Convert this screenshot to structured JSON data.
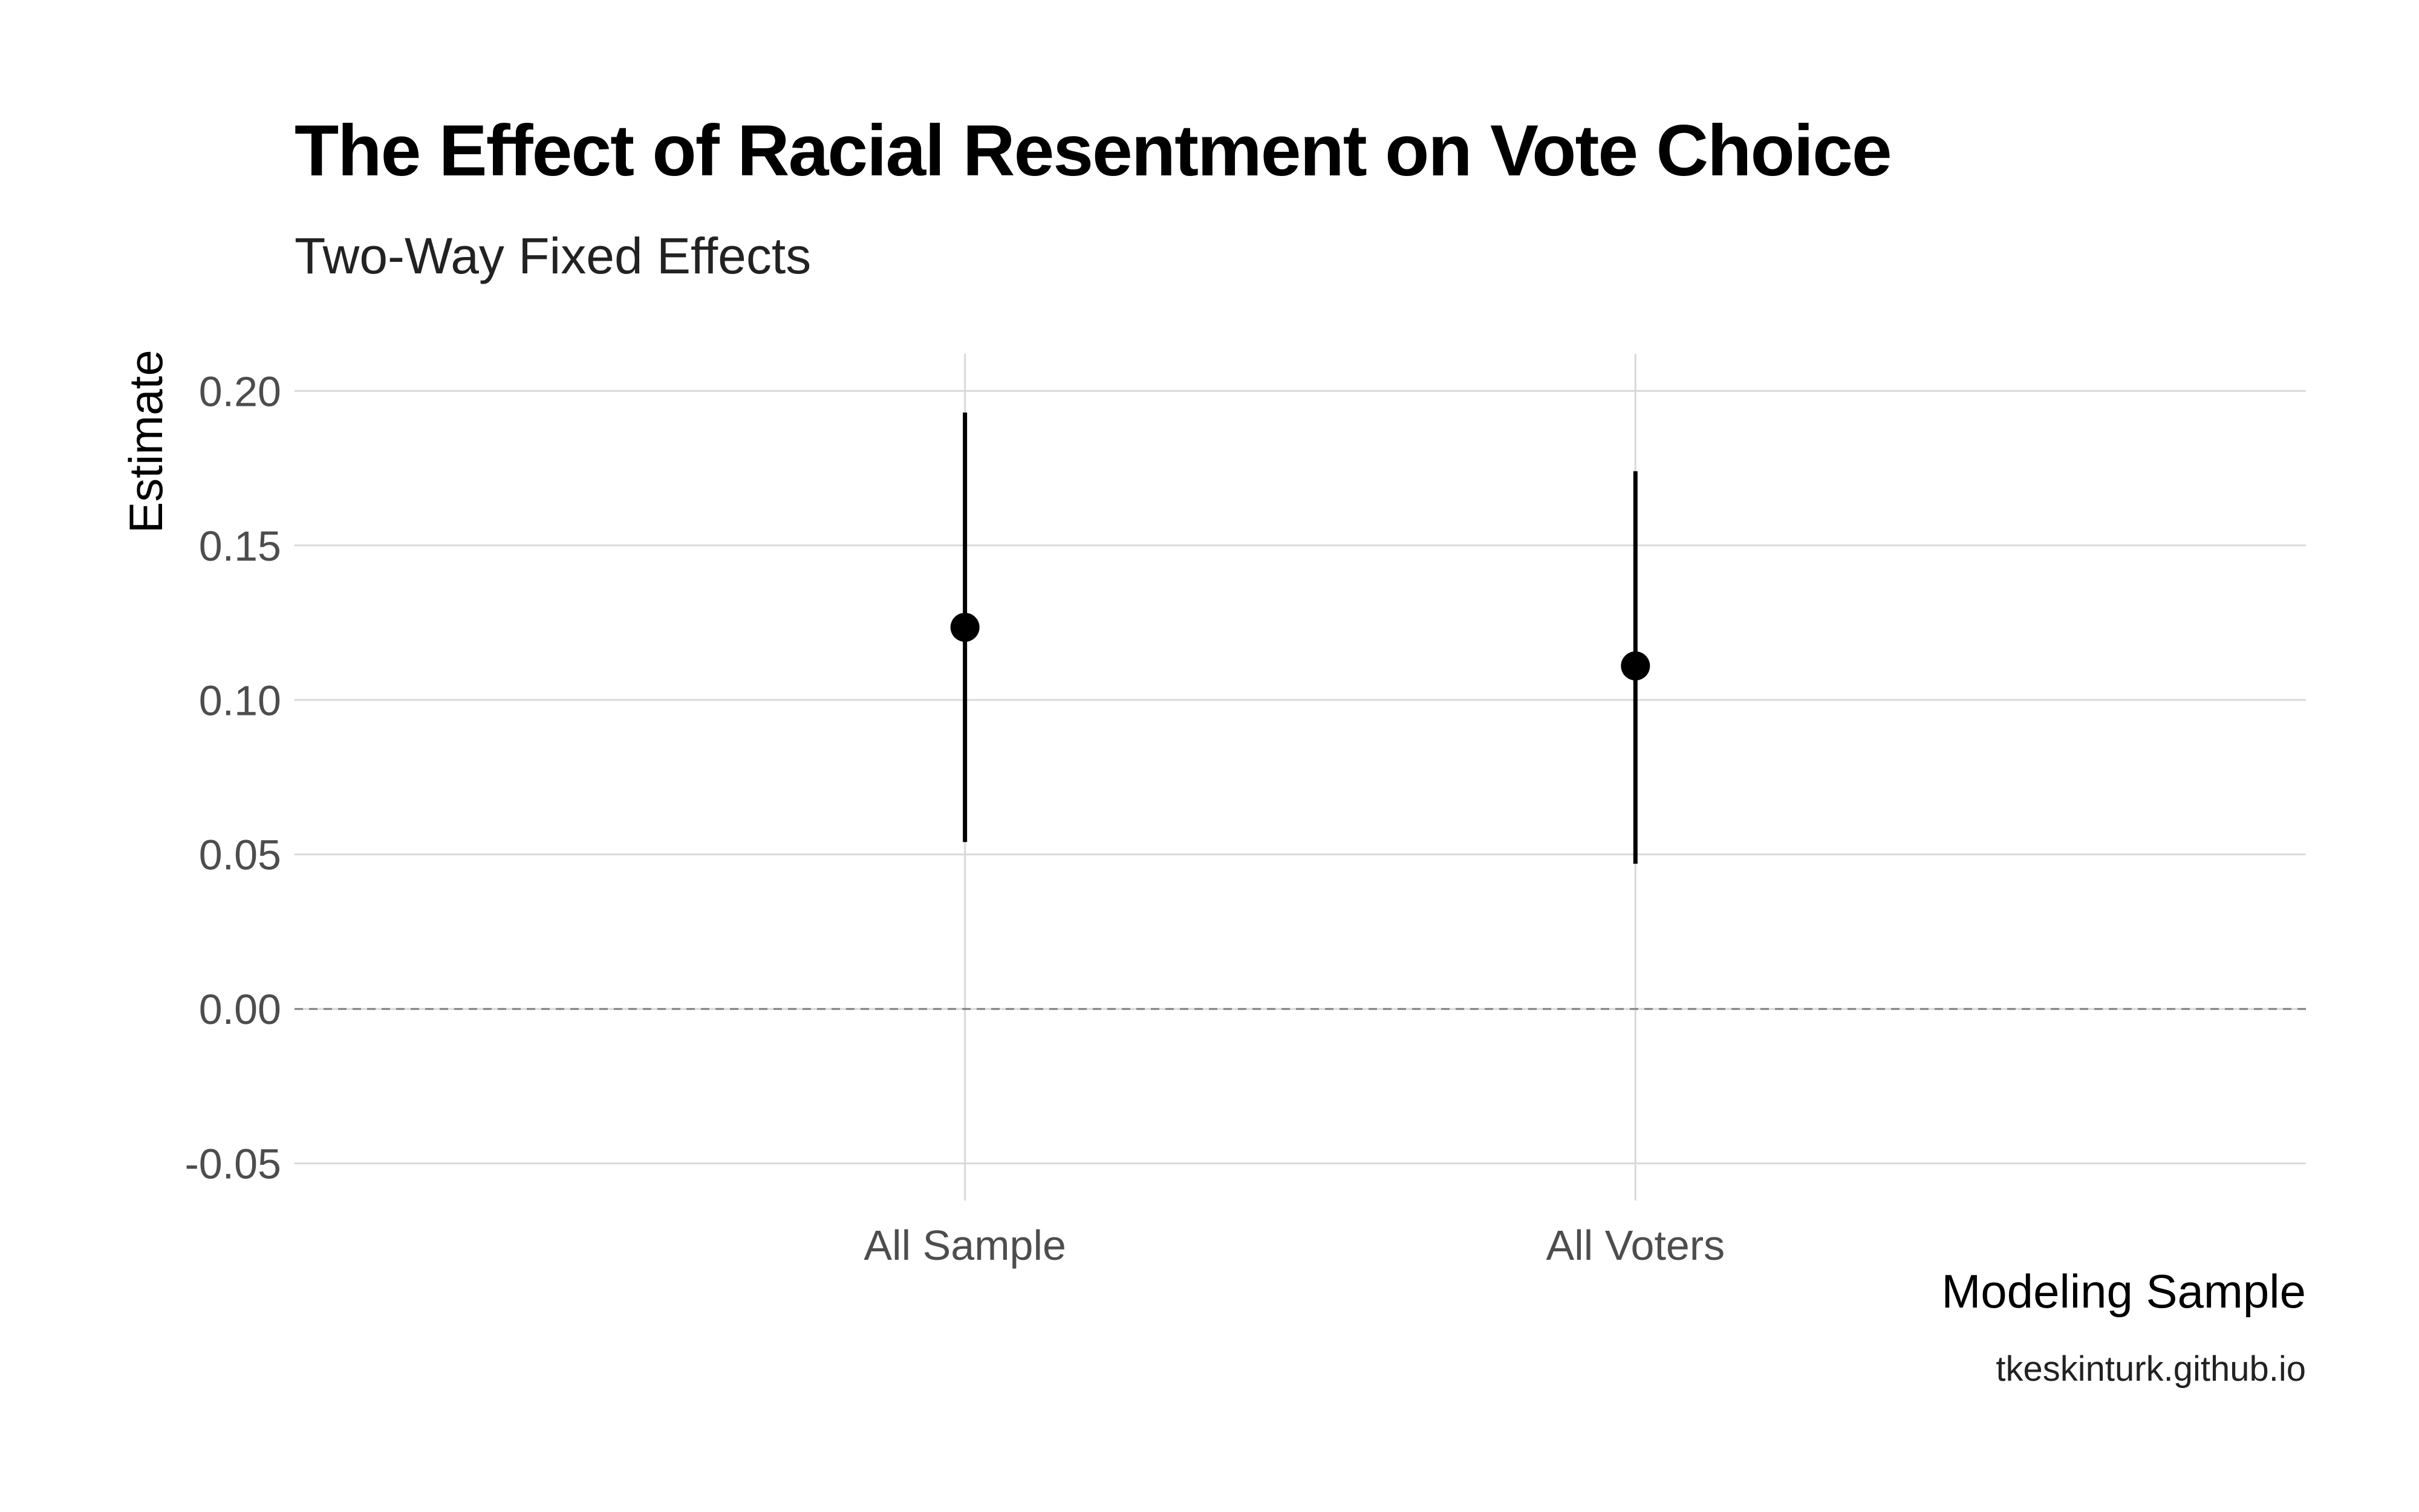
{
  "chart_data": {
    "type": "scatter",
    "title": "The Effect of Racial Resentment on Vote Choice",
    "subtitle": "Two-Way Fixed Effects",
    "caption": "tkeskinturk.github.io",
    "xlabel": "Modeling Sample",
    "ylabel": "Estimate",
    "categories": [
      "All Sample",
      "All Voters"
    ],
    "estimates": [
      0.1235,
      0.111
    ],
    "ci_low": [
      0.054,
      0.047
    ],
    "ci_high": [
      0.193,
      0.174
    ],
    "ylim": [
      -0.062,
      0.212
    ],
    "yticks": [
      -0.05,
      0.0,
      0.05,
      0.1,
      0.15,
      0.2
    ],
    "ytick_labels": [
      "-0.05",
      "0.00",
      "0.05",
      "0.10",
      "0.15",
      "0.20"
    ],
    "reference_line": {
      "y": 0.0,
      "style": "dashed"
    },
    "grid": true,
    "colors": {
      "point": "#000000",
      "grid": "#d9d9d9",
      "reference": "#808080"
    }
  }
}
